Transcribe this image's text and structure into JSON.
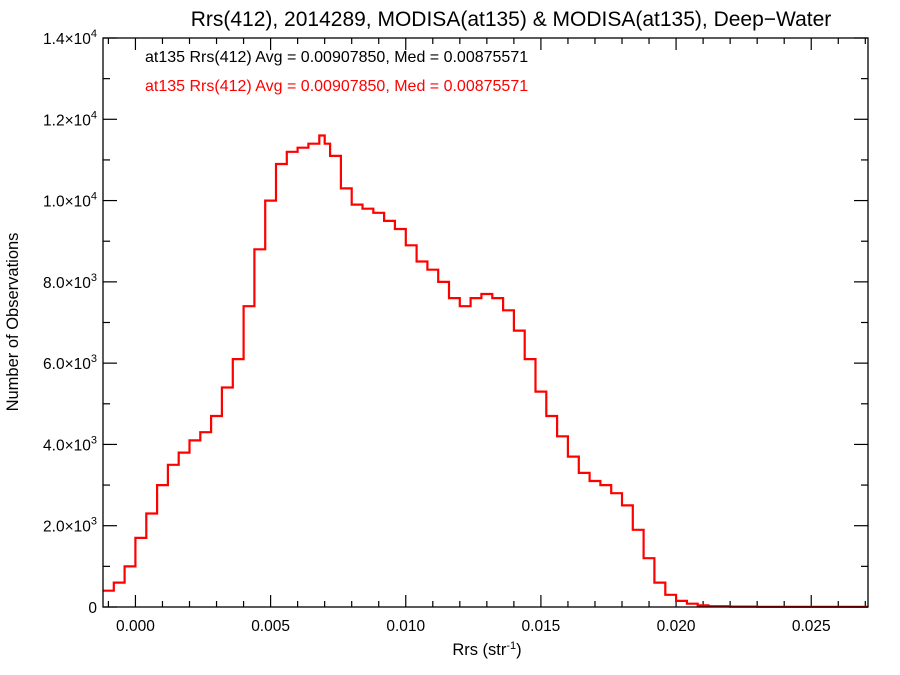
{
  "chart_data": {
    "type": "line",
    "title": "Rrs(412), 2014289, MODISA(at135) & MODISA(at135), Deep−Water",
    "xlabel": "Rrs (str⁻¹)",
    "ylabel": "Number of Observations",
    "xlim": [
      -0.0012,
      0.0271
    ],
    "ylim": [
      0,
      14000
    ],
    "x_ticks": [
      {
        "value": 0.0,
        "label": "0.000"
      },
      {
        "value": 0.005,
        "label": "0.005"
      },
      {
        "value": 0.01,
        "label": "0.010"
      },
      {
        "value": 0.015,
        "label": "0.015"
      },
      {
        "value": 0.02,
        "label": "0.020"
      },
      {
        "value": 0.025,
        "label": "0.025"
      }
    ],
    "y_ticks": [
      {
        "value": 0,
        "mant": "0",
        "exp": ""
      },
      {
        "value": 2000,
        "mant": "2.0×10",
        "exp": "3"
      },
      {
        "value": 4000,
        "mant": "4.0×10",
        "exp": "3"
      },
      {
        "value": 6000,
        "mant": "6.0×10",
        "exp": "3"
      },
      {
        "value": 8000,
        "mant": "8.0×10",
        "exp": "3"
      },
      {
        "value": 10000,
        "mant": "1.0×10",
        "exp": "4"
      },
      {
        "value": 12000,
        "mant": "1.2×10",
        "exp": "4"
      },
      {
        "value": 14000,
        "mant": "1.4×10",
        "exp": "4"
      }
    ],
    "annotations": [
      {
        "text": "at135 Rrs(412) Avg = 0.00907850, Med = 0.00875571",
        "color": "#000000"
      },
      {
        "text": "at135 Rrs(412) Avg = 0.00907850, Med = 0.00875571",
        "color": "#ff0000"
      }
    ],
    "series": [
      {
        "color": "#ff0000",
        "style": "step",
        "x": [
          -0.0012,
          -0.0008,
          -0.0004,
          0.0,
          0.0004,
          0.0008,
          0.0012,
          0.0016,
          0.002,
          0.0024,
          0.0028,
          0.0032,
          0.0036,
          0.004,
          0.0044,
          0.0048,
          0.0052,
          0.0056,
          0.006,
          0.0064,
          0.0068,
          0.007,
          0.0072,
          0.0076,
          0.008,
          0.0084,
          0.0088,
          0.0092,
          0.0096,
          0.01,
          0.0104,
          0.0108,
          0.0112,
          0.0116,
          0.012,
          0.0124,
          0.0128,
          0.0132,
          0.0136,
          0.014,
          0.0144,
          0.0148,
          0.0152,
          0.0156,
          0.016,
          0.0164,
          0.0168,
          0.0172,
          0.0176,
          0.018,
          0.0184,
          0.0188,
          0.0192,
          0.0196,
          0.02,
          0.0204,
          0.0208,
          0.0212,
          0.022,
          0.023,
          0.0271
        ],
        "values": [
          400,
          600,
          1000,
          1700,
          2300,
          3000,
          3500,
          3800,
          4100,
          4300,
          4700,
          5400,
          6100,
          7400,
          8800,
          10000,
          10900,
          11200,
          11300,
          11400,
          11600,
          11400,
          11100,
          10300,
          9900,
          9800,
          9700,
          9500,
          9300,
          8900,
          8500,
          8300,
          8000,
          7600,
          7400,
          7600,
          7700,
          7600,
          7300,
          6800,
          6100,
          5300,
          4700,
          4200,
          3700,
          3300,
          3100,
          3000,
          2800,
          2500,
          1900,
          1200,
          600,
          300,
          150,
          80,
          40,
          20,
          10,
          5,
          5
        ]
      }
    ]
  }
}
